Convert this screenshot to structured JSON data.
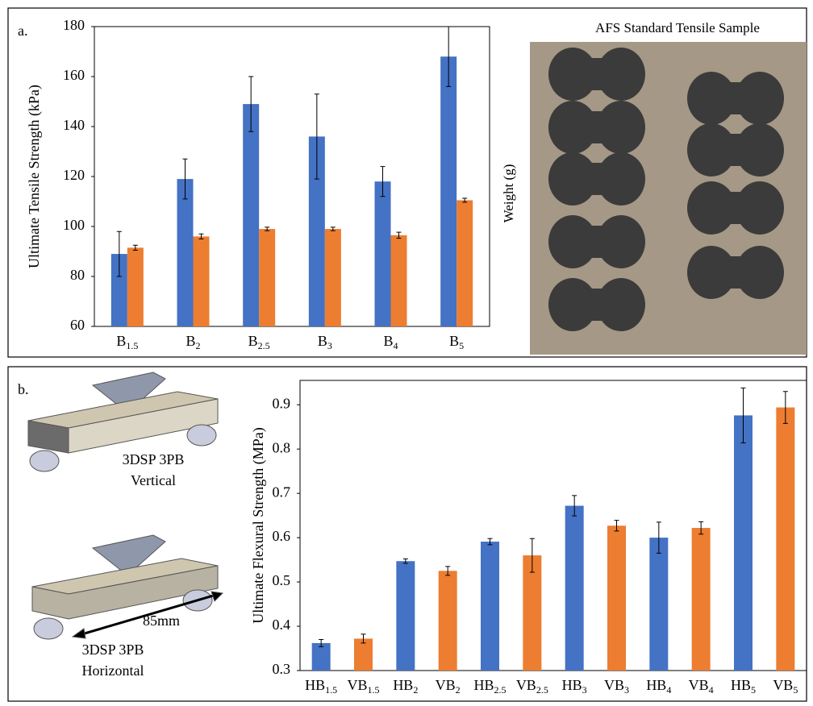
{
  "panel_labels": [
    "a.",
    "b."
  ],
  "photo": {
    "title": "AFS Standard Tensile  Sample",
    "side_label": "Weight (g)"
  },
  "diagram": {
    "vertical": [
      "3DSP 3PB",
      "Vertical"
    ],
    "span": "85mm",
    "horizontal": [
      "3DSP 3PB",
      "Horizontal"
    ]
  },
  "chart_data": [
    {
      "type": "bar",
      "y_label": "Ultimate  Tensile Strength (kPa)",
      "categories": [
        {
          "text": "B",
          "sub": "1.5"
        },
        {
          "text": "B",
          "sub": "2"
        },
        {
          "text": "B",
          "sub": "2.5"
        },
        {
          "text": "B",
          "sub": "3"
        },
        {
          "text": "B",
          "sub": "4"
        },
        {
          "text": "B",
          "sub": "5"
        }
      ],
      "series": [
        {
          "color": "#4472c4",
          "values": [
            89,
            119,
            149,
            136,
            118,
            168
          ],
          "errors": [
            9,
            8,
            11,
            17,
            6,
            12
          ]
        },
        {
          "color": "#ed7d31",
          "values": [
            91.5,
            96,
            99,
            99,
            96.5,
            110.5
          ],
          "errors": [
            1,
            1,
            0.7,
            0.7,
            1.2,
            0.8
          ]
        }
      ],
      "ylim": [
        60,
        180
      ],
      "yticks": [
        60,
        80,
        100,
        120,
        140,
        160,
        180
      ]
    },
    {
      "type": "bar",
      "y_label": "Ultimate  Flexural Strength (MPa)",
      "categories": [
        {
          "text": "HB",
          "sub": "1.5"
        },
        {
          "text": "VB",
          "sub": "1.5"
        },
        {
          "text": "HB",
          "sub": "2"
        },
        {
          "text": "VB",
          "sub": "2"
        },
        {
          "text": "HB",
          "sub": "2.5"
        },
        {
          "text": "VB",
          "sub": "2.5"
        },
        {
          "text": "HB",
          "sub": "3"
        },
        {
          "text": "VB",
          "sub": "3"
        },
        {
          "text": "HB",
          "sub": "4"
        },
        {
          "text": "VB",
          "sub": "4"
        },
        {
          "text": "HB",
          "sub": "5"
        },
        {
          "text": "VB",
          "sub": "5"
        }
      ],
      "values": [
        0.362,
        0.372,
        0.547,
        0.525,
        0.591,
        0.56,
        0.672,
        0.627,
        0.6,
        0.622,
        0.876,
        0.894
      ],
      "errors": [
        0.008,
        0.01,
        0.005,
        0.01,
        0.007,
        0.038,
        0.023,
        0.012,
        0.035,
        0.014,
        0.062,
        0.036
      ],
      "colors": [
        "#4472c4",
        "#ed7d31",
        "#4472c4",
        "#ed7d31",
        "#4472c4",
        "#ed7d31",
        "#4472c4",
        "#ed7d31",
        "#4472c4",
        "#ed7d31",
        "#4472c4",
        "#ed7d31"
      ],
      "ylim": [
        0.3,
        0.955
      ],
      "yticks": [
        0.3,
        0.4,
        0.5,
        0.6,
        0.7,
        0.8,
        0.9
      ]
    }
  ]
}
